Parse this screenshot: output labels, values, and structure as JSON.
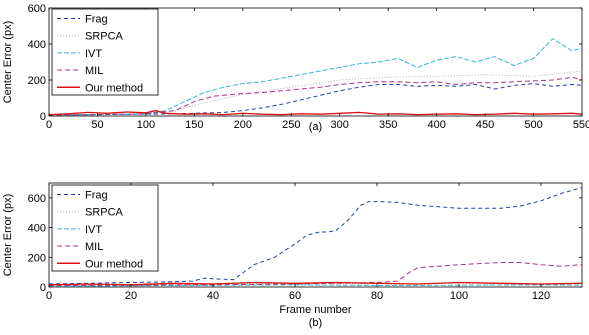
{
  "chart_data": [
    {
      "type": "line",
      "caption": "(a)",
      "xlabel": "",
      "ylabel": "Center Error (px)",
      "xlim": [
        0,
        550
      ],
      "ylim": [
        0,
        600
      ],
      "xticks": [
        0,
        50,
        100,
        150,
        200,
        250,
        300,
        350,
        400,
        450,
        500,
        550
      ],
      "yticks": [
        0,
        200,
        400,
        600
      ],
      "grid": false,
      "legend_position": "top-left",
      "series": [
        {
          "name": "Frag",
          "color": "#1f3fae",
          "dash": "4,3",
          "x": [
            0,
            50,
            100,
            130,
            150,
            180,
            200,
            220,
            240,
            260,
            280,
            300,
            320,
            340,
            360,
            380,
            400,
            420,
            440,
            460,
            480,
            500,
            520,
            540,
            550
          ],
          "y": [
            5,
            8,
            10,
            12,
            15,
            20,
            30,
            45,
            65,
            90,
            115,
            140,
            160,
            175,
            175,
            165,
            170,
            165,
            175,
            150,
            170,
            180,
            165,
            175,
            170
          ]
        },
        {
          "name": "SRPCA",
          "color": "#b0b0b0",
          "dash": "1,2",
          "x": [
            0,
            50,
            100,
            130,
            150,
            200,
            250,
            300,
            350,
            400,
            450,
            500,
            550
          ],
          "y": [
            5,
            8,
            10,
            30,
            60,
            120,
            160,
            200,
            215,
            220,
            230,
            220,
            250
          ]
        },
        {
          "name": "IVT",
          "color": "#33b8cc",
          "dash": "5,2",
          "x": [
            0,
            50,
            100,
            120,
            140,
            160,
            180,
            200,
            220,
            240,
            260,
            280,
            300,
            320,
            340,
            360,
            380,
            400,
            420,
            440,
            460,
            480,
            500,
            520,
            540,
            550
          ],
          "y": [
            5,
            8,
            12,
            30,
            80,
            130,
            160,
            180,
            190,
            210,
            230,
            250,
            270,
            290,
            300,
            320,
            270,
            310,
            330,
            300,
            330,
            280,
            320,
            430,
            360,
            380
          ]
        },
        {
          "name": "MIL",
          "color": "#b0308a",
          "dash": "5,3",
          "x": [
            0,
            50,
            100,
            130,
            150,
            170,
            200,
            220,
            240,
            260,
            280,
            300,
            320,
            340,
            360,
            380,
            400,
            420,
            440,
            460,
            480,
            500,
            520,
            540,
            550
          ],
          "y": [
            5,
            8,
            12,
            30,
            80,
            110,
            125,
            130,
            140,
            150,
            160,
            175,
            185,
            190,
            190,
            185,
            190,
            175,
            185,
            185,
            190,
            195,
            200,
            215,
            200
          ]
        },
        {
          "name": "Our method",
          "color": "#dd1111",
          "dash": "",
          "x": [
            0,
            20,
            40,
            60,
            80,
            100,
            110,
            120,
            140,
            160,
            180,
            200,
            220,
            240,
            260,
            280,
            300,
            320,
            340,
            360,
            380,
            400,
            420,
            440,
            460,
            480,
            500,
            520,
            540,
            550
          ],
          "y": [
            8,
            12,
            20,
            15,
            22,
            18,
            30,
            15,
            10,
            12,
            8,
            15,
            10,
            8,
            12,
            10,
            15,
            20,
            10,
            12,
            8,
            10,
            12,
            8,
            10,
            15,
            10,
            12,
            15,
            10
          ]
        }
      ]
    },
    {
      "type": "line",
      "caption": "(b)",
      "xlabel": "Frame number",
      "ylabel": "Center Error (px)",
      "xlim": [
        0,
        130
      ],
      "ylim": [
        0,
        700
      ],
      "xticks": [
        0,
        20,
        40,
        60,
        80,
        100,
        120
      ],
      "yticks": [
        0,
        200,
        400,
        600
      ],
      "grid": false,
      "legend_position": "top-left",
      "series": [
        {
          "name": "Frag",
          "color": "#1f3fae",
          "dash": "4,3",
          "x": [
            0,
            10,
            20,
            30,
            35,
            38,
            40,
            45,
            50,
            55,
            60,
            63,
            66,
            68,
            70,
            73,
            76,
            78,
            80,
            85,
            90,
            100,
            110,
            115,
            120,
            125,
            130
          ],
          "y": [
            20,
            25,
            30,
            35,
            40,
            60,
            55,
            50,
            150,
            200,
            290,
            350,
            370,
            370,
            380,
            450,
            550,
            575,
            575,
            570,
            550,
            530,
            530,
            545,
            580,
            630,
            670
          ]
        },
        {
          "name": "SRPCA",
          "color": "#b0b0b0",
          "dash": "1,2",
          "x": [
            0,
            20,
            40,
            60,
            80,
            100,
            120,
            130
          ],
          "y": [
            10,
            15,
            20,
            25,
            20,
            25,
            20,
            22
          ]
        },
        {
          "name": "IVT",
          "color": "#33b8cc",
          "dash": "5,2",
          "x": [
            0,
            20,
            40,
            60,
            80,
            100,
            120,
            130
          ],
          "y": [
            5,
            8,
            12,
            15,
            10,
            12,
            15,
            12
          ]
        },
        {
          "name": "MIL",
          "color": "#b0308a",
          "dash": "5,3",
          "x": [
            0,
            20,
            40,
            60,
            80,
            85,
            88,
            90,
            100,
            110,
            115,
            120,
            125,
            130
          ],
          "y": [
            10,
            12,
            15,
            20,
            30,
            40,
            100,
            130,
            150,
            165,
            165,
            150,
            140,
            150
          ]
        },
        {
          "name": "Our method",
          "color": "#dd1111",
          "dash": "",
          "x": [
            0,
            10,
            20,
            30,
            40,
            50,
            60,
            70,
            80,
            90,
            100,
            110,
            120,
            130
          ],
          "y": [
            15,
            20,
            15,
            25,
            20,
            30,
            25,
            30,
            25,
            20,
            30,
            25,
            20,
            25
          ]
        }
      ]
    }
  ]
}
